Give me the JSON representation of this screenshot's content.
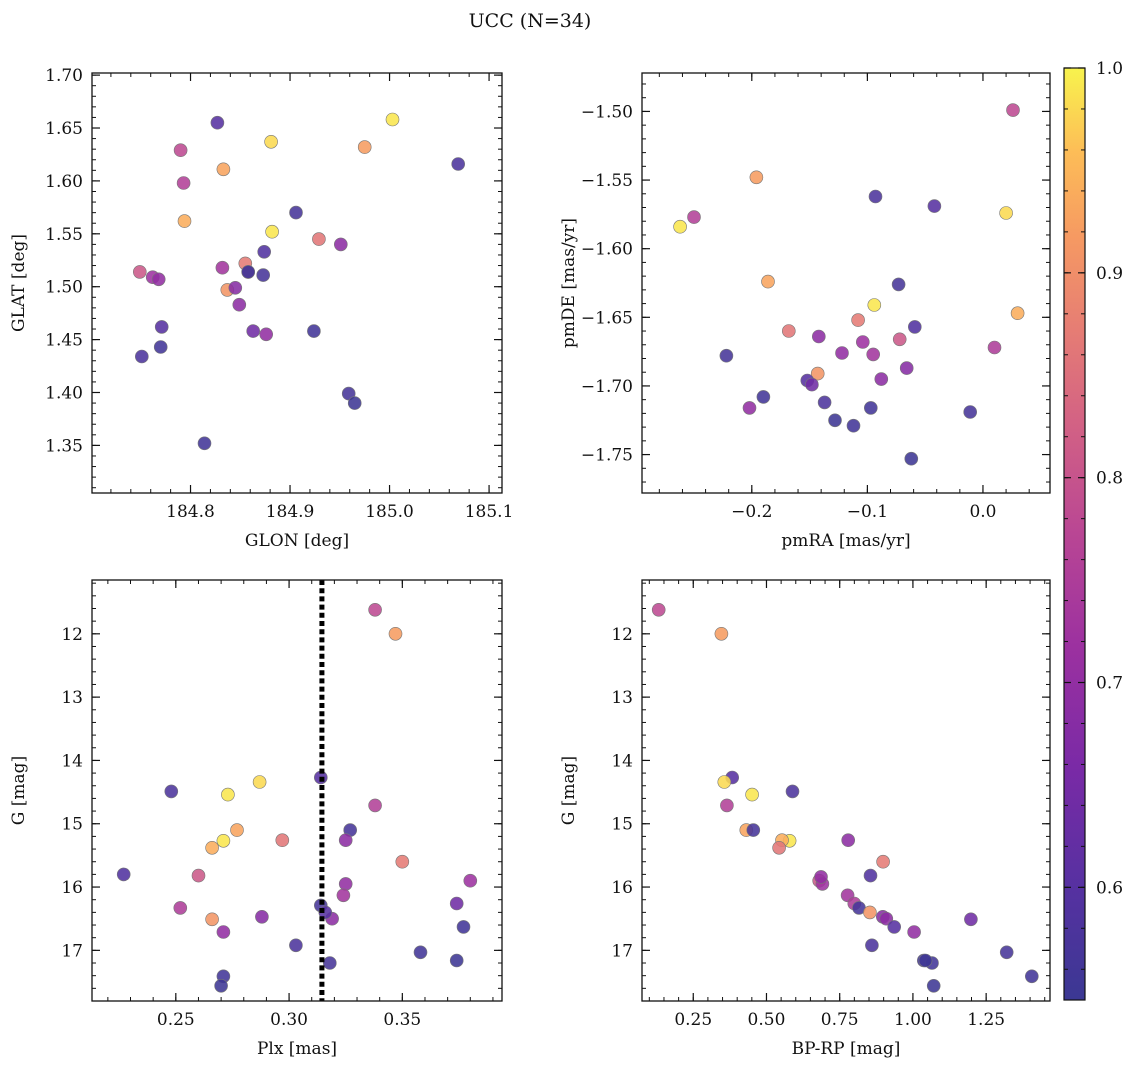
{
  "figure": {
    "title": "UCC (N=34)"
  },
  "colorbar": {
    "colormap": "plasma",
    "range": [
      0.545,
      1.0
    ],
    "ticks": [
      0.6,
      0.7,
      0.8,
      0.9,
      1.0
    ],
    "tick_labels": [
      "0.6",
      "0.7",
      "0.8",
      "0.9",
      "1.0"
    ]
  },
  "chart_data": [
    {
      "type": "scatter",
      "id": "glon-glat",
      "xlabel": "GLON [deg]",
      "ylabel": "GLAT [deg]",
      "xlim": [
        184.701,
        185.113
      ],
      "ylim": [
        1.305,
        1.702
      ],
      "xticks": [
        184.8,
        184.9,
        185.0,
        185.1
      ],
      "xtick_labels": [
        "184.8",
        "184.9",
        "185.0",
        "185.1"
      ],
      "yticks": [
        1.35,
        1.4,
        1.45,
        1.5,
        1.55,
        1.6,
        1.65,
        1.7
      ],
      "ytick_labels": [
        "1.35",
        "1.40",
        "1.45",
        "1.50",
        "1.55",
        "1.60",
        "1.65",
        "1.70"
      ],
      "x": [
        184.79,
        184.975,
        185.069,
        184.827,
        184.881,
        185.003,
        184.793,
        184.833,
        184.906,
        184.882,
        184.794,
        184.929,
        184.951,
        184.855,
        184.874,
        184.749,
        184.762,
        184.768,
        184.832,
        184.858,
        184.873,
        184.837,
        184.845,
        184.849,
        184.771,
        184.863,
        184.876,
        184.924,
        184.751,
        184.77,
        184.959,
        184.965,
        184.814,
        184.858
      ],
      "y": [
        1.629,
        1.632,
        1.616,
        1.655,
        1.637,
        1.658,
        1.598,
        1.611,
        1.57,
        1.552,
        1.562,
        1.545,
        1.54,
        1.522,
        1.533,
        1.514,
        1.509,
        1.507,
        1.518,
        1.514,
        1.511,
        1.497,
        1.499,
        1.483,
        1.462,
        1.458,
        1.455,
        1.458,
        1.434,
        1.443,
        1.399,
        1.39,
        1.352,
        1.514
      ]
    },
    {
      "type": "scatter",
      "id": "pmra-pmde",
      "xlabel": "pmRA [mas/yr]",
      "ylabel": "pmDE [mas/yr]",
      "xlim": [
        -0.295,
        0.058
      ],
      "ylim": [
        -1.778,
        -1.472
      ],
      "xticks": [
        -0.2,
        -0.1,
        0.0
      ],
      "xtick_labels": [
        "−0.2",
        "−0.1",
        "0.0"
      ],
      "yticks": [
        -1.75,
        -1.7,
        -1.65,
        -1.6,
        -1.55,
        -1.5
      ],
      "ytick_labels": [
        "−1.75",
        "−1.70",
        "−1.65",
        "−1.60",
        "−1.55",
        "−1.50"
      ],
      "x": [
        0.026,
        -0.196,
        -0.093,
        -0.042,
        0.02,
        -0.262,
        -0.25,
        -0.186,
        -0.073,
        -0.094,
        0.03,
        -0.168,
        -0.142,
        -0.108,
        -0.059,
        -0.072,
        -0.104,
        -0.122,
        -0.095,
        0.01,
        -0.222,
        -0.143,
        -0.066,
        -0.088,
        -0.152,
        -0.148,
        -0.202,
        -0.19,
        -0.137,
        -0.097,
        -0.011,
        -0.128,
        -0.112,
        -0.062
      ],
      "y": [
        -1.499,
        -1.548,
        -1.562,
        -1.569,
        -1.574,
        -1.584,
        -1.577,
        -1.624,
        -1.626,
        -1.641,
        -1.647,
        -1.66,
        -1.664,
        -1.652,
        -1.657,
        -1.666,
        -1.668,
        -1.676,
        -1.677,
        -1.672,
        -1.678,
        -1.691,
        -1.687,
        -1.695,
        -1.696,
        -1.699,
        -1.716,
        -1.708,
        -1.712,
        -1.716,
        -1.719,
        -1.725,
        -1.729,
        -1.753
      ]
    },
    {
      "type": "scatter",
      "id": "plx-g",
      "xlabel": "Plx [mas]",
      "ylabel": "G [mag]",
      "xlim": [
        0.213,
        0.394
      ],
      "ylim": [
        17.8,
        11.15
      ],
      "y_inverted": true,
      "vline_x": 0.3145,
      "xticks": [
        0.25,
        0.3,
        0.35
      ],
      "xtick_labels": [
        "0.25",
        "0.30",
        "0.35"
      ],
      "yticks": [
        12,
        13,
        14,
        15,
        16,
        17
      ],
      "ytick_labels": [
        "12",
        "13",
        "14",
        "15",
        "16",
        "17"
      ],
      "x": [
        0.338,
        0.347,
        0.248,
        0.314,
        0.287,
        0.273,
        0.338,
        0.277,
        0.327,
        0.271,
        0.266,
        0.297,
        0.325,
        0.35,
        0.227,
        0.26,
        0.38,
        0.325,
        0.324,
        0.252,
        0.314,
        0.266,
        0.288,
        0.319,
        0.316,
        0.374,
        0.271,
        0.377,
        0.303,
        0.358,
        0.318,
        0.374,
        0.271,
        0.27
      ],
      "y": [
        11.62,
        12.0,
        14.49,
        14.27,
        14.34,
        14.54,
        14.71,
        15.1,
        15.1,
        15.27,
        15.38,
        15.26,
        15.26,
        15.6,
        15.8,
        15.82,
        15.9,
        15.95,
        16.13,
        16.33,
        16.29,
        16.51,
        16.47,
        16.5,
        16.4,
        16.26,
        16.71,
        16.63,
        16.92,
        17.03,
        17.2,
        17.16,
        17.41,
        17.56
      ]
    },
    {
      "type": "scatter",
      "id": "bprp-g",
      "xlabel": "BP-RP [mag]",
      "ylabel": "G [mag]",
      "xlim": [
        0.075,
        1.468
      ],
      "ylim": [
        17.8,
        11.15
      ],
      "y_inverted": true,
      "xticks": [
        0.25,
        0.5,
        0.75,
        1.0,
        1.25
      ],
      "xtick_labels": [
        "0.25",
        "0.50",
        "0.75",
        "1.00",
        "1.25"
      ],
      "yticks": [
        12,
        13,
        14,
        15,
        16,
        17
      ],
      "ytick_labels": [
        "12",
        "13",
        "14",
        "15",
        "16",
        "17"
      ],
      "x": [
        0.132,
        0.346,
        0.589,
        0.383,
        0.356,
        0.451,
        0.365,
        0.431,
        0.455,
        0.579,
        0.553,
        0.543,
        0.779,
        0.898,
        0.855,
        0.68,
        0.691,
        0.686,
        0.777,
        0.8,
        0.816,
        0.853,
        0.897,
        0.909,
        0.936,
        1.198,
        1.004,
        1.037,
        0.86,
        1.065,
        1.32,
        1.071,
        1.406,
        1.043
      ],
      "y": [
        11.62,
        12.0,
        14.49,
        14.27,
        14.34,
        14.54,
        14.71,
        15.1,
        15.1,
        15.27,
        15.26,
        15.38,
        15.26,
        15.6,
        15.82,
        15.9,
        15.95,
        15.84,
        16.13,
        16.26,
        16.33,
        16.4,
        16.47,
        16.5,
        16.63,
        16.51,
        16.71,
        17.16,
        16.92,
        17.2,
        17.03,
        17.56,
        17.41,
        17.16
      ]
    }
  ],
  "color_values": [
    0.78,
    0.92,
    0.58,
    0.6,
    0.98,
    0.99,
    0.76,
    0.93,
    0.57,
    0.99,
    0.94,
    0.86,
    0.69,
    0.87,
    0.59,
    0.81,
    0.72,
    0.7,
    0.73,
    0.75,
    0.57,
    0.91,
    0.68,
    0.69,
    0.6,
    0.64,
    0.7,
    0.56,
    0.58,
    0.56,
    0.57,
    0.55,
    0.56,
    0.55
  ]
}
